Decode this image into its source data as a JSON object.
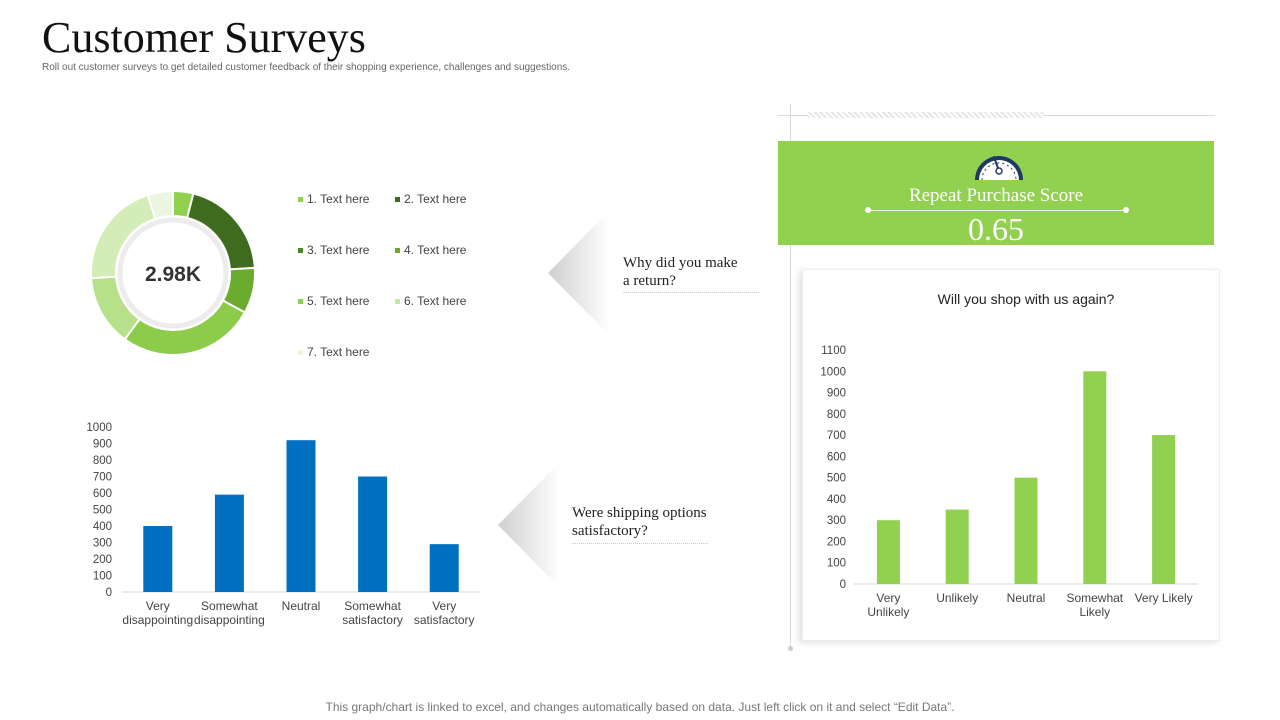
{
  "header": {
    "title": "Customer Surveys",
    "subtitle": "Roll out customer surveys to get detailed customer feedback of their shopping experience, challenges and suggestions."
  },
  "callouts": {
    "return_question": [
      "Why did you make",
      "a return?"
    ],
    "shipping_question": [
      "Were shipping options",
      "satisfactory?"
    ]
  },
  "score": {
    "label": "Repeat Purchase Score",
    "value": "0.65",
    "icon": "speedometer-icon"
  },
  "footer": {
    "note": "This graph/chart is linked to excel,  and changes automatically based on data. Just left click on it and select “Edit Data”."
  },
  "colors": {
    "green": "#92d050",
    "blue": "#0070c0",
    "dark_navy": "#1f3864"
  },
  "chart_data": [
    {
      "type": "pie",
      "variant": "donut",
      "center_label": "2.98K",
      "categories": [
        "1. Text here",
        "2. Text here",
        "3. Text here",
        "4. Text here",
        "5. Text here",
        "6. Text here",
        "7. Text here"
      ],
      "values": [
        4,
        20,
        9,
        27,
        14,
        21,
        5
      ],
      "colors": [
        "#92d050",
        "#3f6b1f",
        "#6aab2e",
        "#8ccc4a",
        "#b7e08a",
        "#d3ecb8",
        "#eaf6e0"
      ],
      "legend_colors": [
        "#92d050",
        "#3f6b1f",
        "#4e8526",
        "#6aab2e",
        "#8fd050",
        "#c6e6a4",
        "#eaf6e0"
      ],
      "legend": "right"
    },
    {
      "type": "bar",
      "categories": [
        [
          "Very",
          "disappointing"
        ],
        [
          "Somewhat",
          "disappointing"
        ],
        [
          "Neutral"
        ],
        [
          "Somewhat",
          "satisfactory"
        ],
        [
          "Very",
          "satisfactory"
        ]
      ],
      "values": [
        400,
        590,
        920,
        700,
        290
      ],
      "ylim": [
        0,
        1000
      ],
      "yticks": [
        0,
        100,
        200,
        300,
        400,
        500,
        600,
        700,
        800,
        900,
        1000
      ],
      "color": "#0070c0",
      "grid": false
    },
    {
      "type": "bar",
      "title": "Will you shop with us again?",
      "categories": [
        [
          "Very",
          "Unlikely"
        ],
        [
          "Unlikely"
        ],
        [
          "Neutral"
        ],
        [
          "Somewhat",
          "Likely"
        ],
        [
          "Very Likely"
        ]
      ],
      "values": [
        300,
        350,
        500,
        1000,
        700
      ],
      "ylim": [
        0,
        1100
      ],
      "yticks": [
        0,
        100,
        200,
        300,
        400,
        500,
        600,
        700,
        800,
        900,
        1000,
        1100
      ],
      "color": "#92d050",
      "grid": false
    }
  ]
}
